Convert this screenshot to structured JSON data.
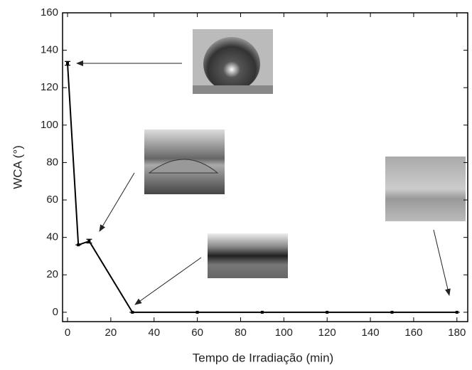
{
  "chart_data": {
    "type": "line",
    "xlabel": "Tempo de Irradiação (min)",
    "ylabel": "WCA (°)",
    "x": [
      0,
      5,
      10,
      30,
      60,
      90,
      120,
      150,
      180
    ],
    "series": [
      {
        "color": "#000000",
        "values": [
          133,
          36,
          38,
          0,
          0,
          0,
          0,
          0,
          0
        ],
        "errors": [
          1,
          0,
          1,
          0,
          0,
          0,
          0,
          0,
          0
        ]
      }
    ],
    "xlim": [
      -2.3,
      185
    ],
    "ylim": [
      -5,
      160
    ],
    "xticks": [
      0,
      20,
      40,
      60,
      80,
      100,
      120,
      140,
      160,
      180
    ],
    "yticks": [
      0,
      20,
      40,
      60,
      80,
      100,
      120,
      140,
      160
    ]
  }
}
